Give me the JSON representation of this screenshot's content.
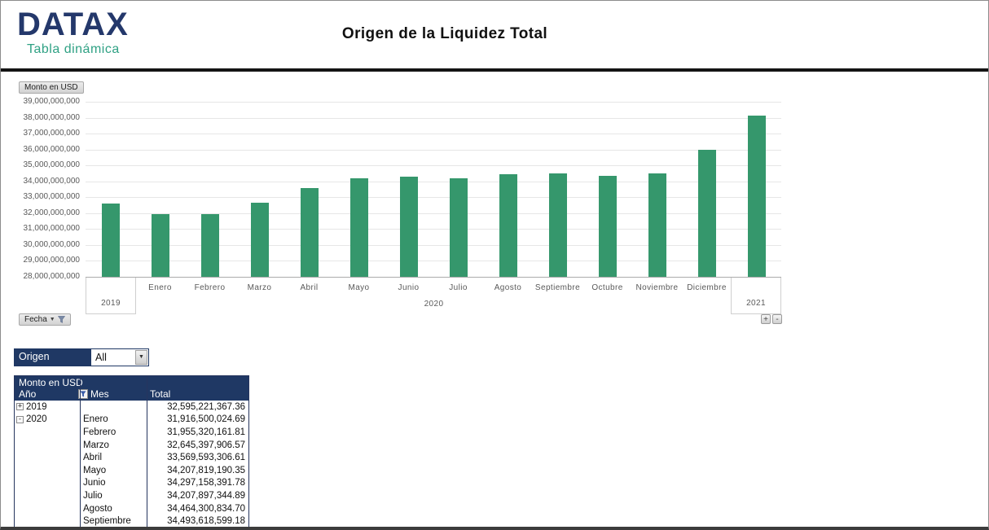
{
  "header": {
    "logo_title": "DATAX",
    "logo_subtitle": "Tabla dinámica",
    "title": "Origen de la Liquidez Total"
  },
  "chart": {
    "value_field_button": "Monto en USD",
    "axis_field_button": "Fecha",
    "expand_button": "+",
    "collapse_button": "-"
  },
  "chart_data": {
    "type": "bar",
    "title": "Origen de la Liquidez Total",
    "value_field": "Monto en USD",
    "axis_field": "Fecha",
    "bar_color": "#35976C",
    "gridlines": true,
    "ylim": [
      28000000000,
      39000000000
    ],
    "y_tick_labels": [
      "39,000,000,000",
      "38,000,000,000",
      "37,000,000,000",
      "36,000,000,000",
      "35,000,000,000",
      "34,000,000,000",
      "33,000,000,000",
      "32,000,000,000",
      "31,000,000,000",
      "30,000,000,000",
      "29,000,000,000",
      "28,000,000,000"
    ],
    "group_labels": [
      "2019",
      "2020",
      "2021"
    ],
    "categories": [
      "2019",
      "Enero",
      "Febrero",
      "Marzo",
      "Abril",
      "Mayo",
      "Junio",
      "Julio",
      "Agosto",
      "Septiembre",
      "Octubre",
      "Noviembre",
      "Diciembre",
      "2021"
    ],
    "values": [
      32595221367.36,
      31916500024.69,
      31955320161.81,
      32645397906.57,
      33569593306.61,
      34207819190.35,
      34297158391.78,
      34207897344.89,
      34464300834.7,
      34493618599.18,
      34340000000,
      34490000000,
      35980000000,
      38130000000
    ]
  },
  "filter": {
    "label": "Origen",
    "value": "All"
  },
  "pivot_table": {
    "value_title": "Monto en USD",
    "col_year": "Año",
    "col_month": "Mes",
    "col_total": "Total",
    "rows": [
      {
        "expand": "+",
        "year": "2019",
        "month": "",
        "total": "32,595,221,367.36"
      },
      {
        "expand": "-",
        "year": "2020",
        "month": "Enero",
        "total": "31,916,500,024.69"
      },
      {
        "expand": "",
        "year": "",
        "month": "Febrero",
        "total": "31,955,320,161.81"
      },
      {
        "expand": "",
        "year": "",
        "month": "Marzo",
        "total": "32,645,397,906.57"
      },
      {
        "expand": "",
        "year": "",
        "month": "Abril",
        "total": "33,569,593,306.61"
      },
      {
        "expand": "",
        "year": "",
        "month": "Mayo",
        "total": "34,207,819,190.35"
      },
      {
        "expand": "",
        "year": "",
        "month": "Junio",
        "total": "34,297,158,391.78"
      },
      {
        "expand": "",
        "year": "",
        "month": "Julio",
        "total": "34,207,897,344.89"
      },
      {
        "expand": "",
        "year": "",
        "month": "Agosto",
        "total": "34,464,300,834.70"
      },
      {
        "expand": "",
        "year": "",
        "month": "Septiembre",
        "total": "34,493,618,599.18"
      }
    ]
  }
}
